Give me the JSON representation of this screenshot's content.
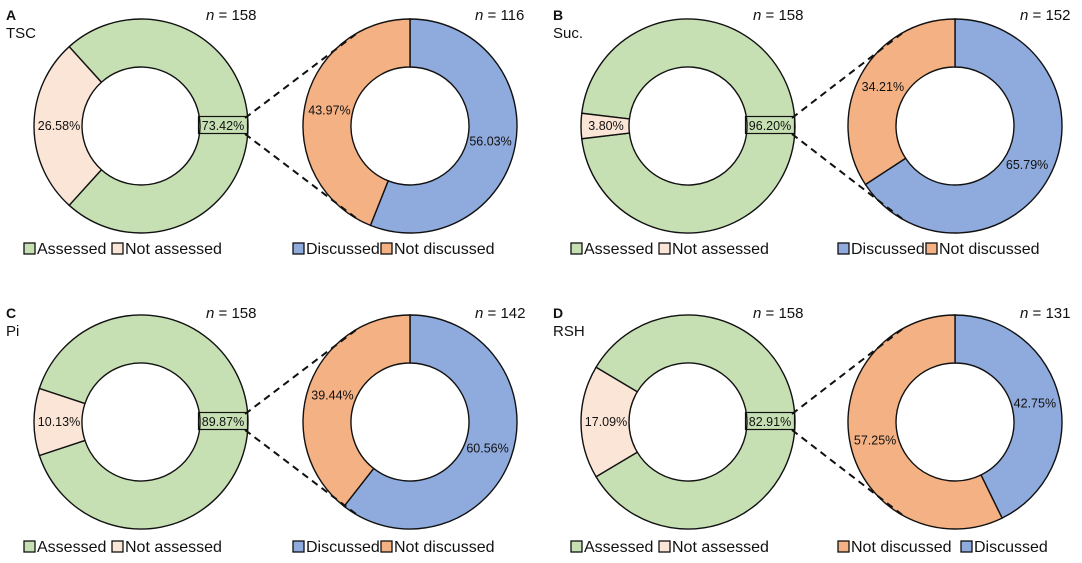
{
  "figure": {
    "background": "#ffffff"
  },
  "colors": {
    "Assessed": "#c6e0b4",
    "Not assessed": "#fbe5d6",
    "Discussed": "#8faadc",
    "Not discussed": "#f4b183"
  },
  "chart_data": [
    {
      "type": "pie",
      "panel": "A",
      "subtitle": "TSC",
      "n_prefix": "n",
      "n_value": "= 158",
      "categories": [
        "Assessed",
        "Not assessed"
      ],
      "values": [
        73.42,
        26.58
      ],
      "labels": [
        "73.42%",
        "26.58%"
      ],
      "legend": [
        "Assessed",
        "Not assessed"
      ]
    },
    {
      "type": "pie",
      "panel": "",
      "subtitle": "",
      "n_prefix": "n",
      "n_value": "= 116",
      "categories": [
        "Discussed",
        "Not discussed"
      ],
      "values": [
        56.03,
        43.97
      ],
      "labels": [
        "56.03%",
        "43.97%"
      ],
      "legend": [
        "Discussed",
        "Not discussed"
      ]
    },
    {
      "type": "pie",
      "panel": "B",
      "subtitle": "Suc.",
      "n_prefix": "n",
      "n_value": "= 158",
      "categories": [
        "Assessed",
        "Not assessed"
      ],
      "values": [
        96.2,
        3.8
      ],
      "labels": [
        "96.20%",
        "3.80%"
      ],
      "legend": [
        "Assessed",
        "Not assessed"
      ]
    },
    {
      "type": "pie",
      "panel": "",
      "subtitle": "",
      "n_prefix": "n",
      "n_value": "= 152",
      "categories": [
        "Discussed",
        "Not discussed"
      ],
      "values": [
        65.79,
        34.21
      ],
      "labels": [
        "65.79%",
        "34.21%"
      ],
      "legend": [
        "Discussed",
        "Not discussed"
      ]
    },
    {
      "type": "pie",
      "panel": "C",
      "subtitle": "Pi",
      "n_prefix": "n",
      "n_value": "= 158",
      "categories": [
        "Assessed",
        "Not assessed"
      ],
      "values": [
        89.87,
        10.13
      ],
      "labels": [
        "89.87%",
        "10.13%"
      ],
      "legend": [
        "Assessed",
        "Not assessed"
      ]
    },
    {
      "type": "pie",
      "panel": "",
      "subtitle": "",
      "n_prefix": "n",
      "n_value": "= 142",
      "categories": [
        "Discussed",
        "Not discussed"
      ],
      "values": [
        60.56,
        39.44
      ],
      "labels": [
        "60.56%",
        "39.44%"
      ],
      "legend": [
        "Discussed",
        "Not discussed"
      ]
    },
    {
      "type": "pie",
      "panel": "D",
      "subtitle": "RSH",
      "n_prefix": "n",
      "n_value": "= 158",
      "categories": [
        "Assessed",
        "Not assessed"
      ],
      "values": [
        82.91,
        17.09
      ],
      "labels": [
        "82.91%",
        "17.09%"
      ],
      "legend": [
        "Assessed",
        "Not assessed"
      ]
    },
    {
      "type": "pie",
      "panel": "",
      "subtitle": "",
      "n_prefix": "n",
      "n_value": "= 131",
      "categories": [
        "Discussed",
        "Not discussed"
      ],
      "values": [
        42.75,
        57.25
      ],
      "labels": [
        "42.75%",
        "57.25%"
      ],
      "legend": [
        "Not discussed",
        "Discussed"
      ]
    }
  ]
}
